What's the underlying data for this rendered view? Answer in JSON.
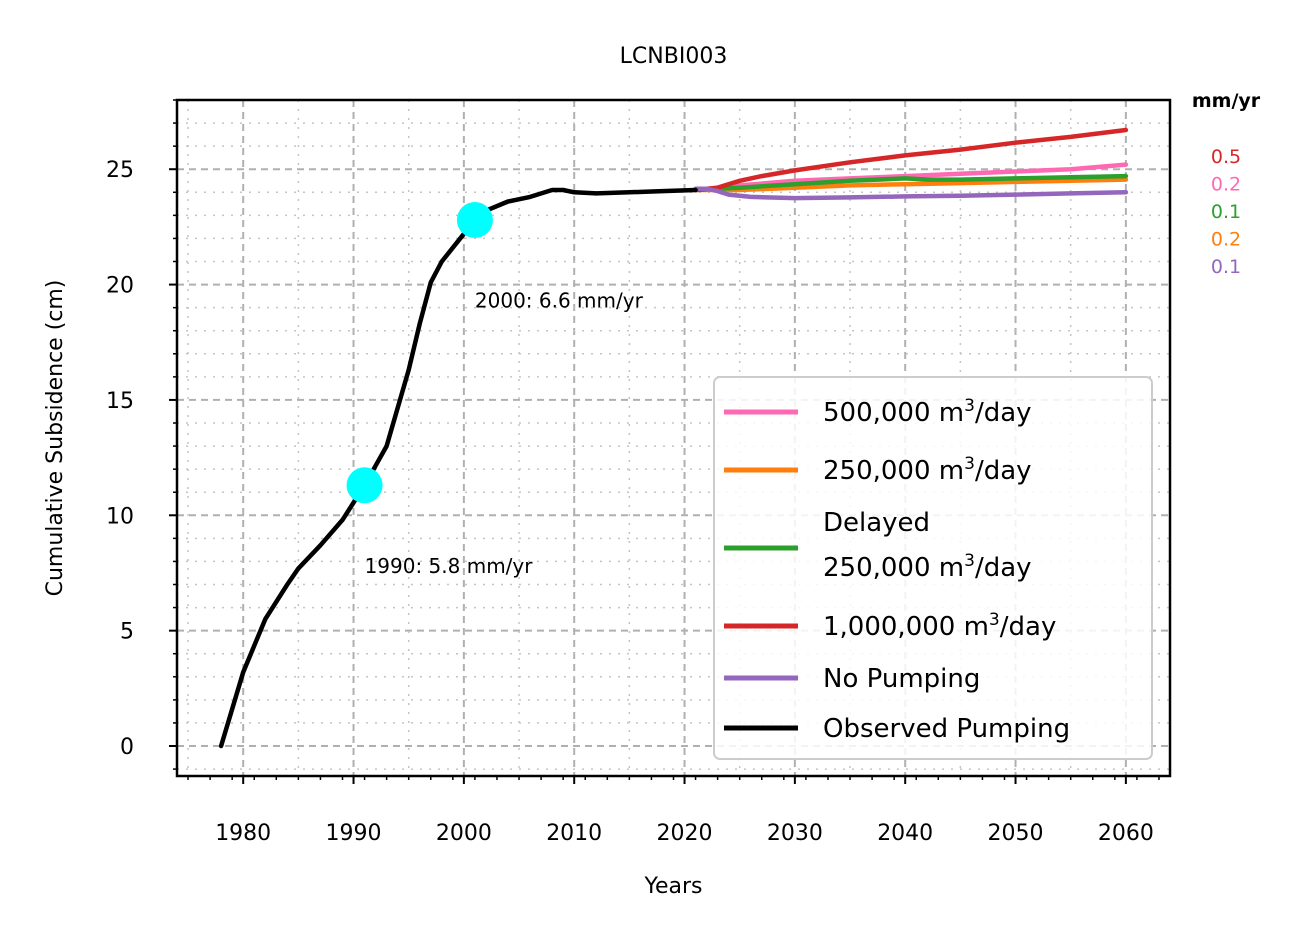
{
  "chart_data": {
    "type": "line",
    "title": "LCNBI003",
    "xlabel": "Years",
    "ylabel": "Cumulative Subsidence (cm)",
    "xlim": [
      1974,
      2064
    ],
    "ylim": [
      -1.3,
      28
    ],
    "xticks": [
      1980,
      1990,
      2000,
      2010,
      2020,
      2030,
      2040,
      2050,
      2060
    ],
    "yticks": [
      0,
      5,
      10,
      15,
      20,
      25
    ],
    "grid": true,
    "legend_placement": "lower-right",
    "rates_header": "mm/yr",
    "series": [
      {
        "name": "500,000 m³/day",
        "label_base": "500,000 m",
        "label_sup": "3",
        "label_tail": "/day",
        "color": "#ff69b4",
        "rate": "0.2",
        "x": [
          2021,
          2025,
          2030,
          2035,
          2040,
          2045,
          2050,
          2055,
          2060
        ],
        "y": [
          24.1,
          24.3,
          24.5,
          24.6,
          24.7,
          24.8,
          24.9,
          25.0,
          25.2
        ]
      },
      {
        "name": "250,000 m³/day",
        "label_base": "250,000 m",
        "label_sup": "3",
        "label_tail": "/day",
        "color": "#ff7f0e",
        "rate": "0.2",
        "x": [
          2021,
          2025,
          2030,
          2035,
          2040,
          2045,
          2050,
          2055,
          2060
        ],
        "y": [
          24.1,
          24.1,
          24.2,
          24.3,
          24.35,
          24.4,
          24.45,
          24.5,
          24.55
        ]
      },
      {
        "name": "Delayed 250,000 m³/day",
        "label_base": "250,000 m",
        "label_sup": "3",
        "label_tail": "/day",
        "label_line1": "Delayed",
        "color": "#2ca02c",
        "rate": "0.1",
        "x": [
          2021,
          2023,
          2025,
          2030,
          2035,
          2040,
          2042,
          2045,
          2050,
          2055,
          2060
        ],
        "y": [
          24.1,
          24.15,
          24.2,
          24.35,
          24.5,
          24.6,
          24.55,
          24.55,
          24.6,
          24.65,
          24.7
        ]
      },
      {
        "name": "1,000,000 m³/day",
        "label_base": "1,000,000 m",
        "label_sup": "3",
        "label_tail": "/day",
        "color": "#d62728",
        "rate": "0.5",
        "x": [
          2021,
          2023,
          2025,
          2027,
          2030,
          2035,
          2040,
          2045,
          2050,
          2055,
          2060
        ],
        "y": [
          24.1,
          24.2,
          24.5,
          24.7,
          24.95,
          25.3,
          25.6,
          25.85,
          26.15,
          26.4,
          26.7
        ]
      },
      {
        "name": "No Pumping",
        "label_base": "No Pumping",
        "label_sup": "",
        "label_tail": "",
        "color": "#9467bd",
        "rate": "0.1",
        "x": [
          2021,
          2022,
          2023,
          2024,
          2026,
          2030,
          2035,
          2040,
          2045,
          2050,
          2055,
          2060
        ],
        "y": [
          24.15,
          24.15,
          24.05,
          23.9,
          23.8,
          23.75,
          23.78,
          23.82,
          23.85,
          23.9,
          23.95,
          24.0
        ]
      },
      {
        "name": "Observed Pumping",
        "label_base": "Observed Pumping",
        "label_sup": "",
        "label_tail": "",
        "color": "#000000",
        "rate": null,
        "x": [
          1978,
          1980,
          1982,
          1984,
          1985,
          1987,
          1989,
          1991,
          1993,
          1995,
          1996,
          1997,
          1998,
          2000,
          2002,
          2004,
          2006,
          2008,
          2009,
          2010,
          2012,
          2015,
          2018,
          2021
        ],
        "y": [
          0,
          3.2,
          5.5,
          7.0,
          7.7,
          8.7,
          9.8,
          11.3,
          13.0,
          16.3,
          18.3,
          20.1,
          21.0,
          22.2,
          23.2,
          23.6,
          23.8,
          24.1,
          24.1,
          24.0,
          23.95,
          24.0,
          24.05,
          24.1
        ]
      }
    ],
    "markers": [
      {
        "x": 1991,
        "y": 11.3,
        "color": "#00ffff"
      },
      {
        "x": 2001,
        "y": 22.8,
        "color": "#00ffff"
      }
    ],
    "annotations": [
      {
        "text": "1990: 5.8 mm/yr",
        "x": 1991,
        "y": 7.5
      },
      {
        "text": "2000: 6.6 mm/yr",
        "x": 2001,
        "y": 19.0
      }
    ],
    "rate_order": [
      "1,000,000 m³/day",
      "500,000 m³/day",
      "Delayed 250,000 m³/day",
      "250,000 m³/day",
      "No Pumping"
    ]
  }
}
